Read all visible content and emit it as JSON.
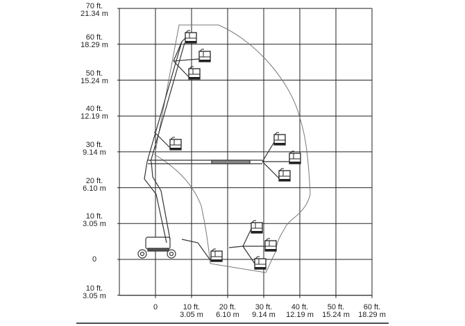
{
  "y_axis": {
    "ticks": [
      {
        "ft": "70 ft.",
        "m": "21.34 m",
        "value": 70
      },
      {
        "ft": "60 ft.",
        "m": "18.29 m",
        "value": 60
      },
      {
        "ft": "50 ft.",
        "m": "15.24 m",
        "value": 50
      },
      {
        "ft": "40 ft.",
        "m": "12.19 m",
        "value": 40
      },
      {
        "ft": "30 ft.",
        "m": "9.14 m",
        "value": 30
      },
      {
        "ft": "20 ft.",
        "m": "6.10 m",
        "value": 20
      },
      {
        "ft": "10 ft.",
        "m": "3.05 m",
        "value": 10
      },
      {
        "ft": "0",
        "m": "",
        "value": 0
      },
      {
        "ft": "10 ft.",
        "m": "3.05 m",
        "value": -10
      }
    ]
  },
  "x_axis": {
    "ticks": [
      {
        "ft": "0",
        "m": "",
        "value": 0
      },
      {
        "ft": "10 ft.",
        "m": "3.05 m",
        "value": 10
      },
      {
        "ft": "20 ft.",
        "m": "6.10 m",
        "value": 20
      },
      {
        "ft": "30 ft.",
        "m": "9.14 m",
        "value": 30
      },
      {
        "ft": "40 ft.",
        "m": "12.19 m",
        "value": 40
      },
      {
        "ft": "50 ft.",
        "m": "15.24 m",
        "value": 50
      },
      {
        "ft": "60 ft.",
        "m": "18.29 m",
        "value": 60
      }
    ]
  },
  "colors": {
    "grid": "#222222",
    "envelope": "#777777",
    "machine": "#333333"
  }
}
